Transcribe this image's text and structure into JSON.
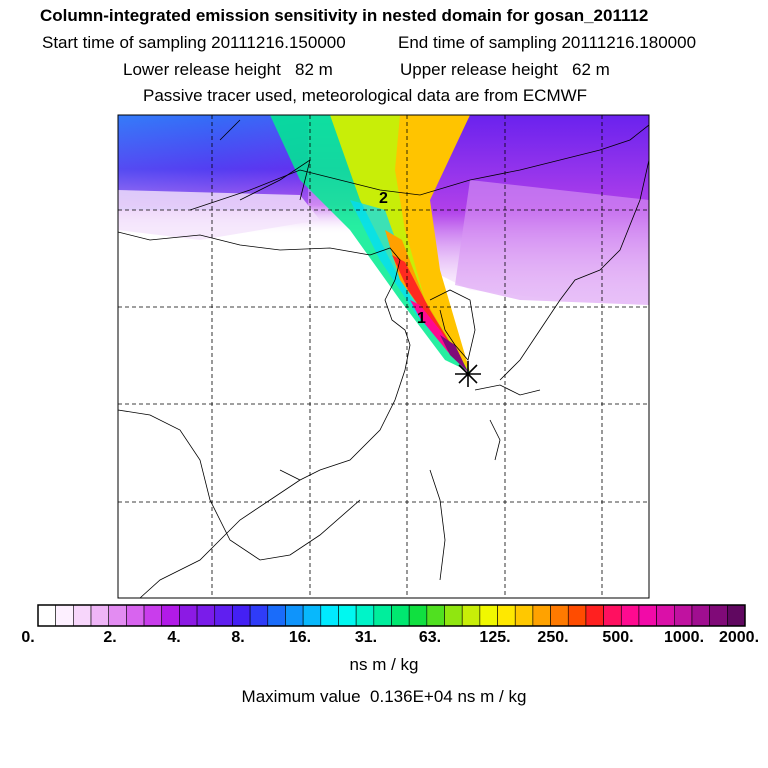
{
  "header": {
    "title": "Column-integrated emission sensitivity in nested domain for gosan_201112",
    "start_label": "Start time of sampling 20111216.150000",
    "end_label": "End time of sampling 20111216.180000",
    "lower_label": "Lower release height   82 m",
    "upper_label": "Upper release height   62 m",
    "tracer_label": "Passive tracer used, meteorological data are from ECMWF"
  },
  "map": {
    "markers": [
      "1",
      "2"
    ],
    "release_site_icon": "asterisk-icon"
  },
  "colorbar": {
    "labels": [
      "0.",
      "2.",
      "4.",
      "8.",
      "16.",
      "31.",
      "63.",
      "125.",
      "250.",
      "500.",
      "1000.",
      "2000."
    ],
    "colors": [
      "#ffffff",
      "#fdf0ff",
      "#f7d6fb",
      "#efb5f7",
      "#e38cf2",
      "#d864ef",
      "#c93dec",
      "#b21ae8",
      "#8c1ae4",
      "#7a1cea",
      "#601ff0",
      "#4420f4",
      "#2f3cf8",
      "#1a6cfa",
      "#0f94fb",
      "#08b8fc",
      "#00eaff",
      "#00f8f0",
      "#00f4c8",
      "#00ee9c",
      "#00e870",
      "#10e040",
      "#50e020",
      "#90e610",
      "#c8ee08",
      "#f0f800",
      "#ffe800",
      "#ffc800",
      "#ffa200",
      "#ff7a00",
      "#ff4c00",
      "#ff2020",
      "#ff1060",
      "#ff0a90",
      "#f20aa8",
      "#da10a8",
      "#c012a0",
      "#a00e90",
      "#800a78",
      "#600860"
    ],
    "units": "ns m / kg",
    "max_label": "Maximum value  0.136E+04 ns m / kg"
  }
}
